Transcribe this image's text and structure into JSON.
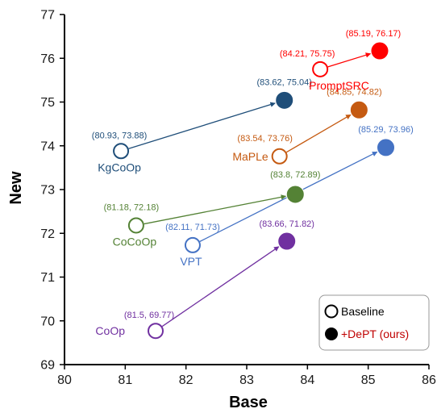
{
  "chart_data": {
    "type": "scatter",
    "xlabel": "Base",
    "ylabel": "New",
    "xlim": [
      80,
      86
    ],
    "ylim": [
      69,
      77
    ],
    "xticks": [
      "80",
      "81",
      "82",
      "83",
      "84",
      "85",
      "86"
    ],
    "yticks": [
      "69",
      "70",
      "71",
      "72",
      "73",
      "74",
      "75",
      "76",
      "77"
    ],
    "grid": false,
    "legend": {
      "position": "bottom-right",
      "entries": [
        {
          "label": "Baseline",
          "style": "hollow",
          "color": "#000000"
        },
        {
          "label": "+DePT (ours)",
          "style": "filled",
          "color": "#000000",
          "text_color": "#c00000"
        }
      ]
    },
    "methods": [
      {
        "name": "CoOp",
        "color": "#7030a0",
        "baseline": {
          "x": 81.5,
          "y": 69.77,
          "label": "(81.5, 69.77)"
        },
        "dept": {
          "x": 83.66,
          "y": 71.82,
          "label": "(83.66, 71.82)"
        }
      },
      {
        "name": "VPT",
        "color": "#4472c4",
        "baseline": {
          "x": 82.11,
          "y": 71.73,
          "label": "(82.11, 71.73)"
        },
        "dept": {
          "x": 85.29,
          "y": 73.96,
          "label": "(85.29, 73.96)"
        }
      },
      {
        "name": "CoCoOp",
        "color": "#548235",
        "baseline": {
          "x": 81.18,
          "y": 72.18,
          "label": "(81.18, 72.18)"
        },
        "dept": {
          "x": 83.8,
          "y": 72.89,
          "label": "(83.8, 72.89)"
        }
      },
      {
        "name": "MaPLe",
        "color": "#c55a11",
        "baseline": {
          "x": 83.54,
          "y": 73.76,
          "label": "(83.54, 73.76)"
        },
        "dept": {
          "x": 84.85,
          "y": 74.82,
          "label": "(84.85, 74.82)"
        }
      },
      {
        "name": "KgCoOp",
        "color": "#1f4e79",
        "baseline": {
          "x": 80.93,
          "y": 73.88,
          "label": "(80.93, 73.88)"
        },
        "dept": {
          "x": 83.62,
          "y": 75.04,
          "label": "(83.62, 75.04)"
        }
      },
      {
        "name": "PromptSRC",
        "color": "#ff0000",
        "baseline": {
          "x": 84.21,
          "y": 75.75,
          "label": "(84.21, 75.75)"
        },
        "dept": {
          "x": 85.19,
          "y": 76.17,
          "label": "(85.19, 76.17)"
        }
      }
    ]
  }
}
